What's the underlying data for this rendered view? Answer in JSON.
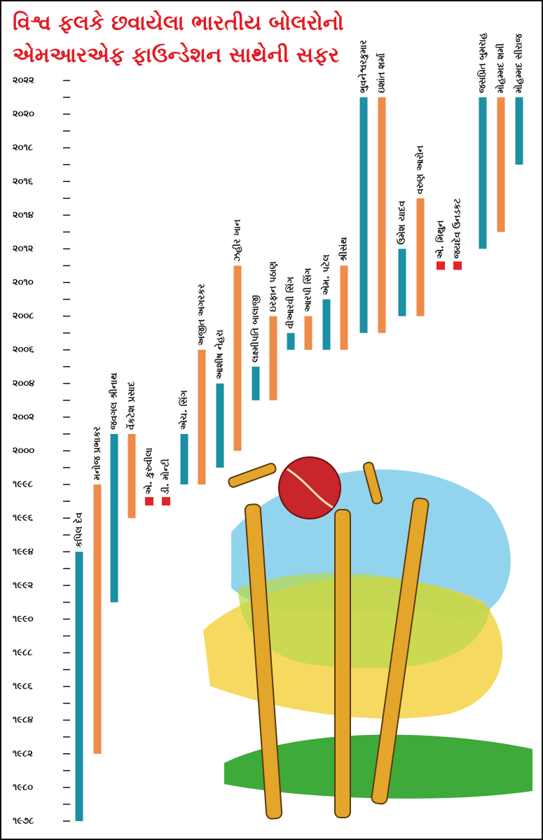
{
  "chart_data": {
    "type": "range-bar",
    "title": "વિશ્વ ફલકે છવાયેલા ભારતીય બોલરોનો",
    "subtitle": "એમઆરએફ ફાઉન્ડેશન સાથેની સફર",
    "categories": [
      "કપિલ દેવ",
      "મનોજ પ્રભાકર",
      "જવગલ શ્રીનાથ",
      "વેંકટેશ પ્રસાદ",
      "એ. કુરુવીલા",
      "ડી. મોન્ટી",
      "એચ. સિંગ",
      "અજીત અગરકર",
      "આશીષ નેહરા",
      "ઝહીર ખાન",
      "લક્ષ્મીપતિ બાલાજી",
      "ઇરફાન પઠાણ",
      "વીઆરવી સિંગ",
      "આરપી સિંગ",
      "એમ. પટેલ",
      "શ્રીસંથ",
      "ભુવનેશ્વરકુમાર",
      "ઇશાંત શર્મા",
      "ઉમેશ યાદવ",
      "વરુણ આરોન",
      "એ. મિથુન",
      "જયદેવ ઉનડકટ",
      "જસપ્રિત બુમરાહ",
      "મોહમ્મદ શમી",
      "મોહમ્મદ સીરાજ"
    ],
    "start": [
      1978,
      1982,
      1991,
      1996,
      1997,
      1997,
      1998,
      1998,
      1999,
      2000,
      2003,
      2003,
      2006,
      2006,
      2006,
      2006,
      2007,
      2007,
      2008,
      2008,
      2011,
      2011,
      2012,
      2013,
      2017
    ],
    "end": [
      1994,
      1998,
      2001,
      2001,
      1997,
      1997,
      2001,
      2006,
      2004,
      2011,
      2005,
      2008,
      2007,
      2008,
      2009,
      2011,
      2021,
      2021,
      2012,
      2015,
      2011,
      2011,
      2021,
      2021,
      2021
    ],
    "colors": [
      "#1b8fa3",
      "#f08a48",
      "#1b8fa3",
      "#f08a48",
      "#e8202a",
      "#e8202a",
      "#1b8fa3",
      "#f08a48",
      "#1b8fa3",
      "#f08a48",
      "#1b8fa3",
      "#f08a48",
      "#1b8fa3",
      "#f08a48",
      "#1b8fa3",
      "#f08a48",
      "#1b8fa3",
      "#f08a48",
      "#1b8fa3",
      "#f08a48",
      "#e8202a",
      "#e8202a",
      "#1b8fa3",
      "#f08a48",
      "#1b8fa3"
    ],
    "ylim": [
      1978,
      2022
    ],
    "yticks": [
      {
        "value": 1978,
        "label": "૧૯૭૮"
      },
      {
        "value": 1980,
        "label": "૧૯૮૦"
      },
      {
        "value": 1982,
        "label": "૧૯૮૨"
      },
      {
        "value": 1984,
        "label": "૧૯૮૪"
      },
      {
        "value": 1986,
        "label": "૧૯૮૬"
      },
      {
        "value": 1988,
        "label": "૧૯૮૮"
      },
      {
        "value": 1990,
        "label": "૧૯૯૦"
      },
      {
        "value": 1992,
        "label": "૧૯૯૨"
      },
      {
        "value": 1994,
        "label": "૧૯૯૪"
      },
      {
        "value": 1996,
        "label": "૧૯૯૬"
      },
      {
        "value": 1998,
        "label": "૧૯૯૮"
      },
      {
        "value": 2000,
        "label": "૨૦૦૦"
      },
      {
        "value": 2002,
        "label": "૨૦૦૨"
      },
      {
        "value": 2004,
        "label": "૨૦૦૪"
      },
      {
        "value": 2006,
        "label": "૨૦૦૬"
      },
      {
        "value": 2008,
        "label": "૨૦૦૮"
      },
      {
        "value": 2010,
        "label": "૨૦૧૦"
      },
      {
        "value": 2012,
        "label": "૨૦૧૨"
      },
      {
        "value": 2014,
        "label": "૨૦૧૪"
      },
      {
        "value": 2016,
        "label": "૨૦૧૬"
      },
      {
        "value": 2018,
        "label": "૨૦૧૮"
      },
      {
        "value": 2020,
        "label": "૨૦૨૦"
      },
      {
        "value": 2022,
        "label": "૨૦૨૨"
      }
    ],
    "yminorticks": [
      1979,
      1981,
      1983,
      1985,
      1987,
      1989,
      1991,
      1993,
      1995,
      1997,
      1999,
      2001,
      2003,
      2005,
      2007,
      2009,
      2011,
      2013,
      2015,
      2017,
      2019,
      2021
    ]
  }
}
